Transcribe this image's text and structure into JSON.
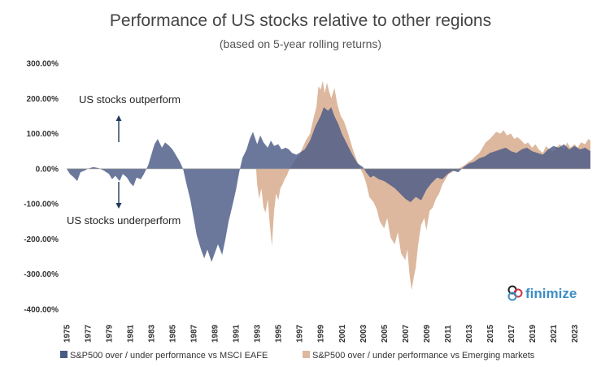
{
  "chart_data": {
    "type": "area",
    "title": "Performance of US stocks relative to other regions",
    "subtitle": "(based on 5-year rolling returns)",
    "ylim": [
      -400,
      300
    ],
    "yticks": [
      300,
      200,
      100,
      0,
      -100,
      -200,
      -300,
      -400
    ],
    "ytick_labels": [
      "300.00%",
      "200.00%",
      "100.00%",
      "0.00%",
      "-100.00%",
      "-200.00%",
      "-300.00%",
      "-400.00%"
    ],
    "xlim": [
      1975,
      2024.5
    ],
    "xticks": [
      1975,
      1977,
      1979,
      1981,
      1983,
      1985,
      1987,
      1989,
      1991,
      1993,
      1995,
      1997,
      1999,
      2001,
      2003,
      2005,
      2007,
      2009,
      2011,
      2013,
      2015,
      2017,
      2019,
      2021,
      2023
    ],
    "grid": false,
    "legend_position": "bottom",
    "annotations": {
      "outperform": "US stocks outperform",
      "underperform": "US stocks underperform"
    },
    "brand": "finimize",
    "series": [
      {
        "name": "S&P500 over / under performance vs MSCI EAFE",
        "color": "#4a5a86",
        "points": [
          [
            1975.0,
            0
          ],
          [
            1975.3,
            -15
          ],
          [
            1975.7,
            -25
          ],
          [
            1976.0,
            -35
          ],
          [
            1976.3,
            -10
          ],
          [
            1976.7,
            -5
          ],
          [
            1977.0,
            0
          ],
          [
            1977.5,
            5
          ],
          [
            1978.0,
            2
          ],
          [
            1978.5,
            -5
          ],
          [
            1979.0,
            -15
          ],
          [
            1979.3,
            -30
          ],
          [
            1979.6,
            -20
          ],
          [
            1980.0,
            -35
          ],
          [
            1980.3,
            -15
          ],
          [
            1980.7,
            -25
          ],
          [
            1981.0,
            -40
          ],
          [
            1981.3,
            -50
          ],
          [
            1981.6,
            -25
          ],
          [
            1982.0,
            -30
          ],
          [
            1982.3,
            -15
          ],
          [
            1982.7,
            10
          ],
          [
            1983.0,
            40
          ],
          [
            1983.3,
            70
          ],
          [
            1983.6,
            85
          ],
          [
            1984.0,
            60
          ],
          [
            1984.3,
            75
          ],
          [
            1984.7,
            65
          ],
          [
            1985.0,
            55
          ],
          [
            1985.3,
            40
          ],
          [
            1985.7,
            20
          ],
          [
            1986.0,
            0
          ],
          [
            1986.3,
            -40
          ],
          [
            1986.7,
            -90
          ],
          [
            1987.0,
            -140
          ],
          [
            1987.3,
            -190
          ],
          [
            1987.7,
            -230
          ],
          [
            1988.0,
            -255
          ],
          [
            1988.3,
            -230
          ],
          [
            1988.7,
            -265
          ],
          [
            1989.0,
            -240
          ],
          [
            1989.3,
            -215
          ],
          [
            1989.7,
            -245
          ],
          [
            1990.0,
            -200
          ],
          [
            1990.3,
            -150
          ],
          [
            1990.7,
            -100
          ],
          [
            1991.0,
            -60
          ],
          [
            1991.3,
            -10
          ],
          [
            1991.6,
            30
          ],
          [
            1992.0,
            55
          ],
          [
            1992.3,
            85
          ],
          [
            1992.6,
            105
          ],
          [
            1993.0,
            70
          ],
          [
            1993.3,
            95
          ],
          [
            1993.6,
            75
          ],
          [
            1994.0,
            60
          ],
          [
            1994.3,
            80
          ],
          [
            1994.6,
            65
          ],
          [
            1995.0,
            70
          ],
          [
            1995.3,
            55
          ],
          [
            1995.7,
            60
          ],
          [
            1996.0,
            55
          ],
          [
            1996.3,
            45
          ],
          [
            1996.7,
            40
          ],
          [
            1997.0,
            45
          ],
          [
            1997.5,
            55
          ],
          [
            1998.0,
            80
          ],
          [
            1998.5,
            120
          ],
          [
            1999.0,
            150
          ],
          [
            1999.3,
            175
          ],
          [
            1999.7,
            165
          ],
          [
            2000.0,
            175
          ],
          [
            2000.3,
            150
          ],
          [
            2000.7,
            125
          ],
          [
            2001.0,
            100
          ],
          [
            2001.5,
            70
          ],
          [
            2002.0,
            40
          ],
          [
            2002.5,
            15
          ],
          [
            2003.0,
            5
          ],
          [
            2003.3,
            -10
          ],
          [
            2003.7,
            -25
          ],
          [
            2004.0,
            -20
          ],
          [
            2004.5,
            -30
          ],
          [
            2005.0,
            -35
          ],
          [
            2005.5,
            -45
          ],
          [
            2006.0,
            -55
          ],
          [
            2006.5,
            -70
          ],
          [
            2007.0,
            -85
          ],
          [
            2007.5,
            -95
          ],
          [
            2008.0,
            -80
          ],
          [
            2008.5,
            -90
          ],
          [
            2009.0,
            -60
          ],
          [
            2009.5,
            -40
          ],
          [
            2010.0,
            -25
          ],
          [
            2010.5,
            -30
          ],
          [
            2011.0,
            -15
          ],
          [
            2011.5,
            -5
          ],
          [
            2012.0,
            -10
          ],
          [
            2012.5,
            5
          ],
          [
            2013.0,
            15
          ],
          [
            2013.5,
            20
          ],
          [
            2014.0,
            30
          ],
          [
            2014.5,
            35
          ],
          [
            2015.0,
            45
          ],
          [
            2015.5,
            50
          ],
          [
            2016.0,
            55
          ],
          [
            2016.5,
            60
          ],
          [
            2017.0,
            50
          ],
          [
            2017.5,
            45
          ],
          [
            2018.0,
            55
          ],
          [
            2018.5,
            60
          ],
          [
            2019.0,
            50
          ],
          [
            2019.5,
            45
          ],
          [
            2020.0,
            40
          ],
          [
            2020.5,
            55
          ],
          [
            2021.0,
            65
          ],
          [
            2021.5,
            60
          ],
          [
            2022.0,
            70
          ],
          [
            2022.5,
            55
          ],
          [
            2023.0,
            65
          ],
          [
            2023.5,
            55
          ],
          [
            2024.0,
            60
          ],
          [
            2024.5,
            50
          ]
        ]
      },
      {
        "name": "S&P500 over / under performance vs Emerging markets",
        "color": "#ddb89e",
        "points": [
          [
            1992.9,
            0
          ],
          [
            1993.0,
            -45
          ],
          [
            1993.2,
            -85
          ],
          [
            1993.4,
            -55
          ],
          [
            1993.6,
            -110
          ],
          [
            1993.8,
            -125
          ],
          [
            1994.0,
            -85
          ],
          [
            1994.2,
            -160
          ],
          [
            1994.4,
            -220
          ],
          [
            1994.6,
            -120
          ],
          [
            1994.8,
            -70
          ],
          [
            1995.0,
            -90
          ],
          [
            1995.2,
            -55
          ],
          [
            1995.4,
            -45
          ],
          [
            1995.6,
            -30
          ],
          [
            1995.8,
            -20
          ],
          [
            1996.0,
            -5
          ],
          [
            1996.3,
            10
          ],
          [
            1996.6,
            25
          ],
          [
            1997.0,
            40
          ],
          [
            1997.3,
            60
          ],
          [
            1997.6,
            80
          ],
          [
            1998.0,
            100
          ],
          [
            1998.3,
            140
          ],
          [
            1998.6,
            175
          ],
          [
            1998.8,
            235
          ],
          [
            1999.0,
            225
          ],
          [
            1999.2,
            250
          ],
          [
            1999.4,
            215
          ],
          [
            1999.6,
            245
          ],
          [
            1999.8,
            220
          ],
          [
            2000.0,
            200
          ],
          [
            2000.3,
            230
          ],
          [
            2000.6,
            180
          ],
          [
            2000.9,
            150
          ],
          [
            2001.2,
            135
          ],
          [
            2001.5,
            110
          ],
          [
            2001.8,
            80
          ],
          [
            2002.1,
            50
          ],
          [
            2002.4,
            25
          ],
          [
            2002.7,
            5
          ],
          [
            2003.0,
            -15
          ],
          [
            2003.3,
            -40
          ],
          [
            2003.6,
            -80
          ],
          [
            2004.0,
            -95
          ],
          [
            2004.3,
            -115
          ],
          [
            2004.6,
            -150
          ],
          [
            2005.0,
            -170
          ],
          [
            2005.3,
            -140
          ],
          [
            2005.6,
            -195
          ],
          [
            2006.0,
            -215
          ],
          [
            2006.3,
            -180
          ],
          [
            2006.6,
            -240
          ],
          [
            2007.0,
            -260
          ],
          [
            2007.2,
            -230
          ],
          [
            2007.4,
            -300
          ],
          [
            2007.6,
            -345
          ],
          [
            2007.8,
            -310
          ],
          [
            2008.0,
            -280
          ],
          [
            2008.2,
            -220
          ],
          [
            2008.5,
            -160
          ],
          [
            2008.8,
            -140
          ],
          [
            2009.0,
            -175
          ],
          [
            2009.3,
            -120
          ],
          [
            2009.6,
            -110
          ],
          [
            2009.9,
            -85
          ],
          [
            2010.2,
            -70
          ],
          [
            2010.5,
            -45
          ],
          [
            2010.8,
            -30
          ],
          [
            2011.1,
            -15
          ],
          [
            2011.4,
            -10
          ],
          [
            2011.7,
            -5
          ],
          [
            2012.0,
            0
          ],
          [
            2012.3,
            5
          ],
          [
            2012.6,
            10
          ],
          [
            2013.0,
            20
          ],
          [
            2013.3,
            25
          ],
          [
            2013.6,
            35
          ],
          [
            2014.0,
            45
          ],
          [
            2014.3,
            60
          ],
          [
            2014.6,
            75
          ],
          [
            2015.0,
            85
          ],
          [
            2015.3,
            95
          ],
          [
            2015.6,
            105
          ],
          [
            2016.0,
            100
          ],
          [
            2016.3,
            110
          ],
          [
            2016.6,
            95
          ],
          [
            2017.0,
            100
          ],
          [
            2017.3,
            85
          ],
          [
            2017.6,
            90
          ],
          [
            2018.0,
            80
          ],
          [
            2018.3,
            70
          ],
          [
            2018.6,
            75
          ],
          [
            2019.0,
            60
          ],
          [
            2019.3,
            70
          ],
          [
            2019.6,
            55
          ],
          [
            2020.0,
            45
          ],
          [
            2020.3,
            65
          ],
          [
            2020.6,
            55
          ],
          [
            2021.0,
            50
          ],
          [
            2021.3,
            60
          ],
          [
            2021.6,
            70
          ],
          [
            2022.0,
            55
          ],
          [
            2022.3,
            75
          ],
          [
            2022.6,
            60
          ],
          [
            2023.0,
            70
          ],
          [
            2023.3,
            60
          ],
          [
            2023.6,
            75
          ],
          [
            2024.0,
            70
          ],
          [
            2024.3,
            85
          ],
          [
            2024.5,
            80
          ]
        ]
      }
    ]
  }
}
